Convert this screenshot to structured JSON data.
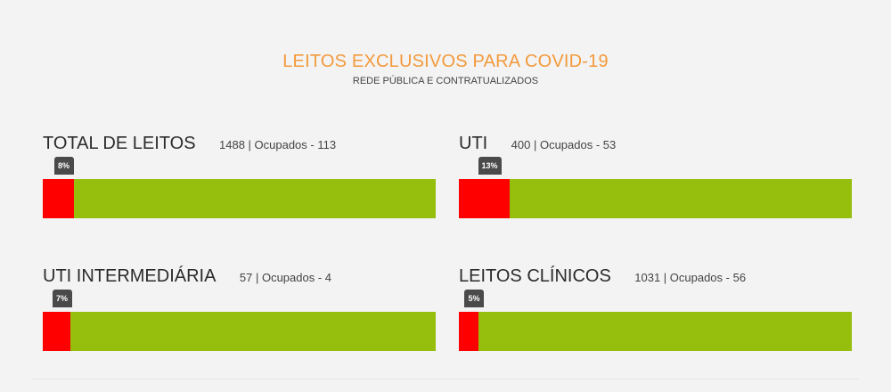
{
  "header": {
    "title": "LEITOS EXCLUSIVOS PARA COVID-19",
    "subtitle": "REDE PÚBLICA E CONTRATUALIZADOS"
  },
  "colors": {
    "occupied": "#ff0000",
    "available": "#96be0d",
    "title": "#f39a3c",
    "badge": "#4a4a4a"
  },
  "chart_data": [
    {
      "type": "bar",
      "label": "TOTAL DE LEITOS",
      "info": "1488 | Ocupados - 113",
      "total": 1488,
      "occupied": 113,
      "percent": 8,
      "percent_label": "8%"
    },
    {
      "type": "bar",
      "label": "UTI",
      "info": "400 | Ocupados - 53",
      "total": 400,
      "occupied": 53,
      "percent": 13,
      "percent_label": "13%"
    },
    {
      "type": "bar",
      "label": "UTI INTERMEDIÁRIA",
      "info": "57 | Ocupados - 4",
      "total": 57,
      "occupied": 4,
      "percent": 7,
      "percent_label": "7%"
    },
    {
      "type": "bar",
      "label": "LEITOS CLÍNICOS",
      "info": "1031 | Ocupados - 56",
      "total": 1031,
      "occupied": 56,
      "percent": 5,
      "percent_label": "5%"
    }
  ]
}
